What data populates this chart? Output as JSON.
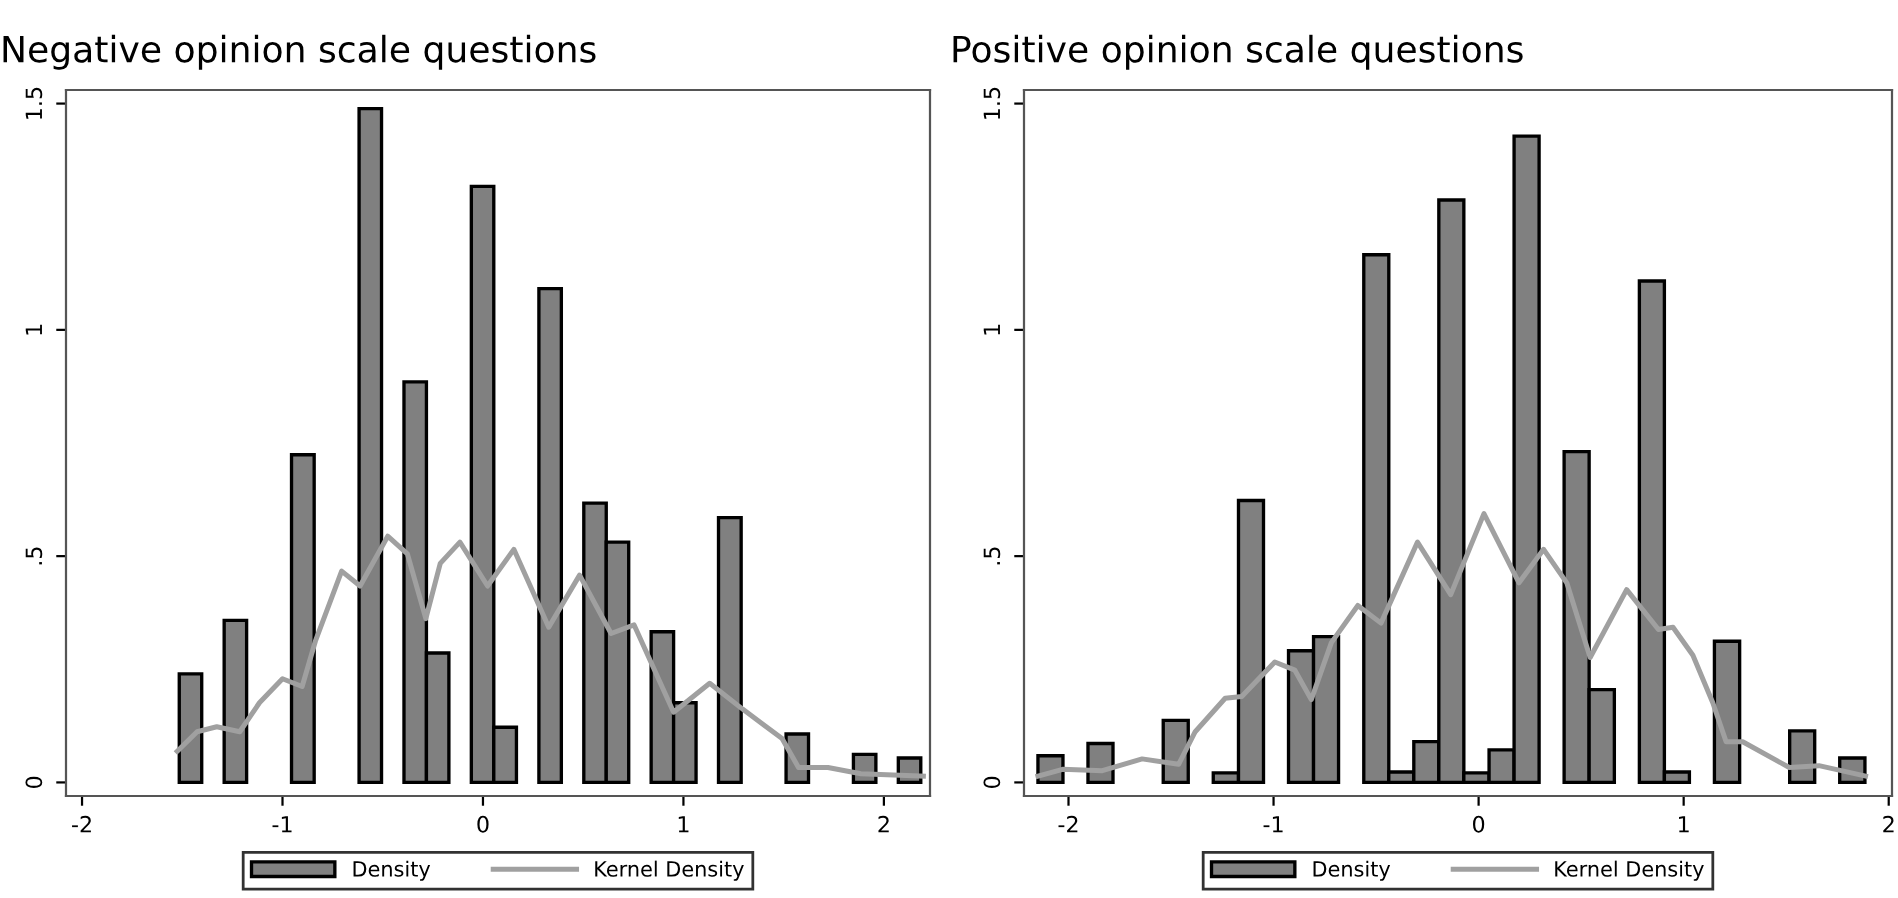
{
  "chart_data": [
    {
      "type": "histogram",
      "title": "Negative opinion scale questions",
      "xlim": [
        -2.08,
        2.23
      ],
      "ylim": [
        -0.03,
        1.53
      ],
      "xticks": [
        -2,
        -1,
        0,
        1,
        2
      ],
      "yticks": [
        0,
        {
          "value": 0.5,
          "label": ".5"
        },
        1,
        1.5
      ],
      "grid": false,
      "legend": "bottom",
      "series": [
        {
          "name": "Density",
          "type": "histogram",
          "color": "#808080",
          "bins": [
            -1.515,
            -1.403,
            -1.291,
            -1.179,
            -1.067,
            -0.955,
            -0.842,
            -0.73,
            -0.618,
            -0.506,
            -0.394,
            -0.282,
            -0.17,
            -0.058,
            0.054,
            0.167,
            0.279,
            0.391,
            0.503,
            0.615,
            0.727,
            0.839,
            0.951,
            1.063,
            1.175,
            1.288,
            1.4,
            1.512,
            1.624,
            1.736,
            1.848,
            1.96,
            2.072,
            2.184
          ],
          "values": [
            0.24,
            0,
            0.358,
            0,
            0,
            0.724,
            0,
            0,
            1.489,
            0,
            0.885,
            0.286,
            0,
            1.317,
            0.122,
            0,
            1.091,
            0,
            0.617,
            0.531,
            0,
            0.333,
            0.176,
            0,
            0.585,
            0,
            0,
            0.107,
            0,
            0,
            0.062,
            0,
            0.054
          ]
        },
        {
          "name": "Kernel Density",
          "type": "line",
          "color": "#a0a0a0",
          "x": [
            -1.525,
            -1.426,
            -1.328,
            -1.213,
            -1.115,
            -1.0,
            -0.902,
            -0.836,
            -0.705,
            -0.613,
            -0.475,
            -0.377,
            -0.285,
            -0.213,
            -0.115,
            0.023,
            0.154,
            0.328,
            0.482,
            0.639,
            0.754,
            0.951,
            1.131,
            1.295,
            1.492,
            1.574,
            1.721,
            1.885,
            2.197
          ],
          "values": [
            0.069,
            0.112,
            0.123,
            0.112,
            0.176,
            0.229,
            0.212,
            0.312,
            0.467,
            0.434,
            0.544,
            0.505,
            0.362,
            0.484,
            0.531,
            0.434,
            0.515,
            0.343,
            0.458,
            0.329,
            0.348,
            0.155,
            0.219,
            0.162,
            0.097,
            0.033,
            0.033,
            0.019,
            0.014
          ]
        }
      ]
    },
    {
      "type": "histogram",
      "title": "Positive opinion scale questions",
      "xlim": [
        -2.217,
        2.016
      ],
      "ylim": [
        -0.03,
        1.53
      ],
      "xticks": [
        -2,
        -1,
        0,
        1,
        2
      ],
      "yticks": [
        0,
        {
          "value": 0.5,
          "label": ".5"
        },
        1,
        1.5
      ],
      "grid": false,
      "legend": "bottom",
      "series": [
        {
          "name": "Density",
          "type": "histogram",
          "color": "#808080",
          "bins": [
            -2.149,
            -2.027,
            -1.905,
            -1.783,
            -1.66,
            -1.538,
            -1.416,
            -1.294,
            -1.171,
            -1.049,
            -0.927,
            -0.805,
            -0.683,
            -0.56,
            -0.438,
            -0.316,
            -0.194,
            -0.072,
            0.051,
            0.173,
            0.295,
            0.417,
            0.539,
            0.662,
            0.784,
            0.906,
            1.028,
            1.15,
            1.273,
            1.395,
            1.517,
            1.639,
            1.761,
            1.884
          ],
          "values": [
            0.059,
            0,
            0.086,
            0,
            0,
            0.137,
            0,
            0.021,
            0.623,
            0,
            0.291,
            0.322,
            0,
            1.166,
            0.023,
            0.09,
            1.287,
            0.021,
            0.072,
            1.428,
            0,
            0.731,
            0.205,
            0,
            1.108,
            0.023,
            0,
            0.312,
            0,
            0,
            0.114,
            0,
            0.054
          ]
        },
        {
          "name": "Kernel Density",
          "type": "line",
          "color": "#a0a0a0",
          "x": [
            -2.149,
            -2.029,
            -1.835,
            -1.641,
            -1.463,
            -1.382,
            -1.236,
            -1.155,
            -0.994,
            -0.896,
            -0.816,
            -0.718,
            -0.589,
            -0.476,
            -0.298,
            -0.136,
            0.026,
            0.197,
            0.317,
            0.43,
            0.544,
            0.722,
            0.877,
            0.948,
            1.045,
            1.142,
            1.207,
            1.288,
            1.515,
            1.66,
            1.887
          ],
          "values": [
            0.014,
            0.029,
            0.026,
            0.052,
            0.04,
            0.112,
            0.186,
            0.19,
            0.266,
            0.248,
            0.183,
            0.309,
            0.391,
            0.352,
            0.531,
            0.415,
            0.594,
            0.441,
            0.515,
            0.441,
            0.276,
            0.426,
            0.338,
            0.343,
            0.281,
            0.176,
            0.09,
            0.09,
            0.033,
            0.037,
            0.014
          ]
        }
      ]
    }
  ]
}
